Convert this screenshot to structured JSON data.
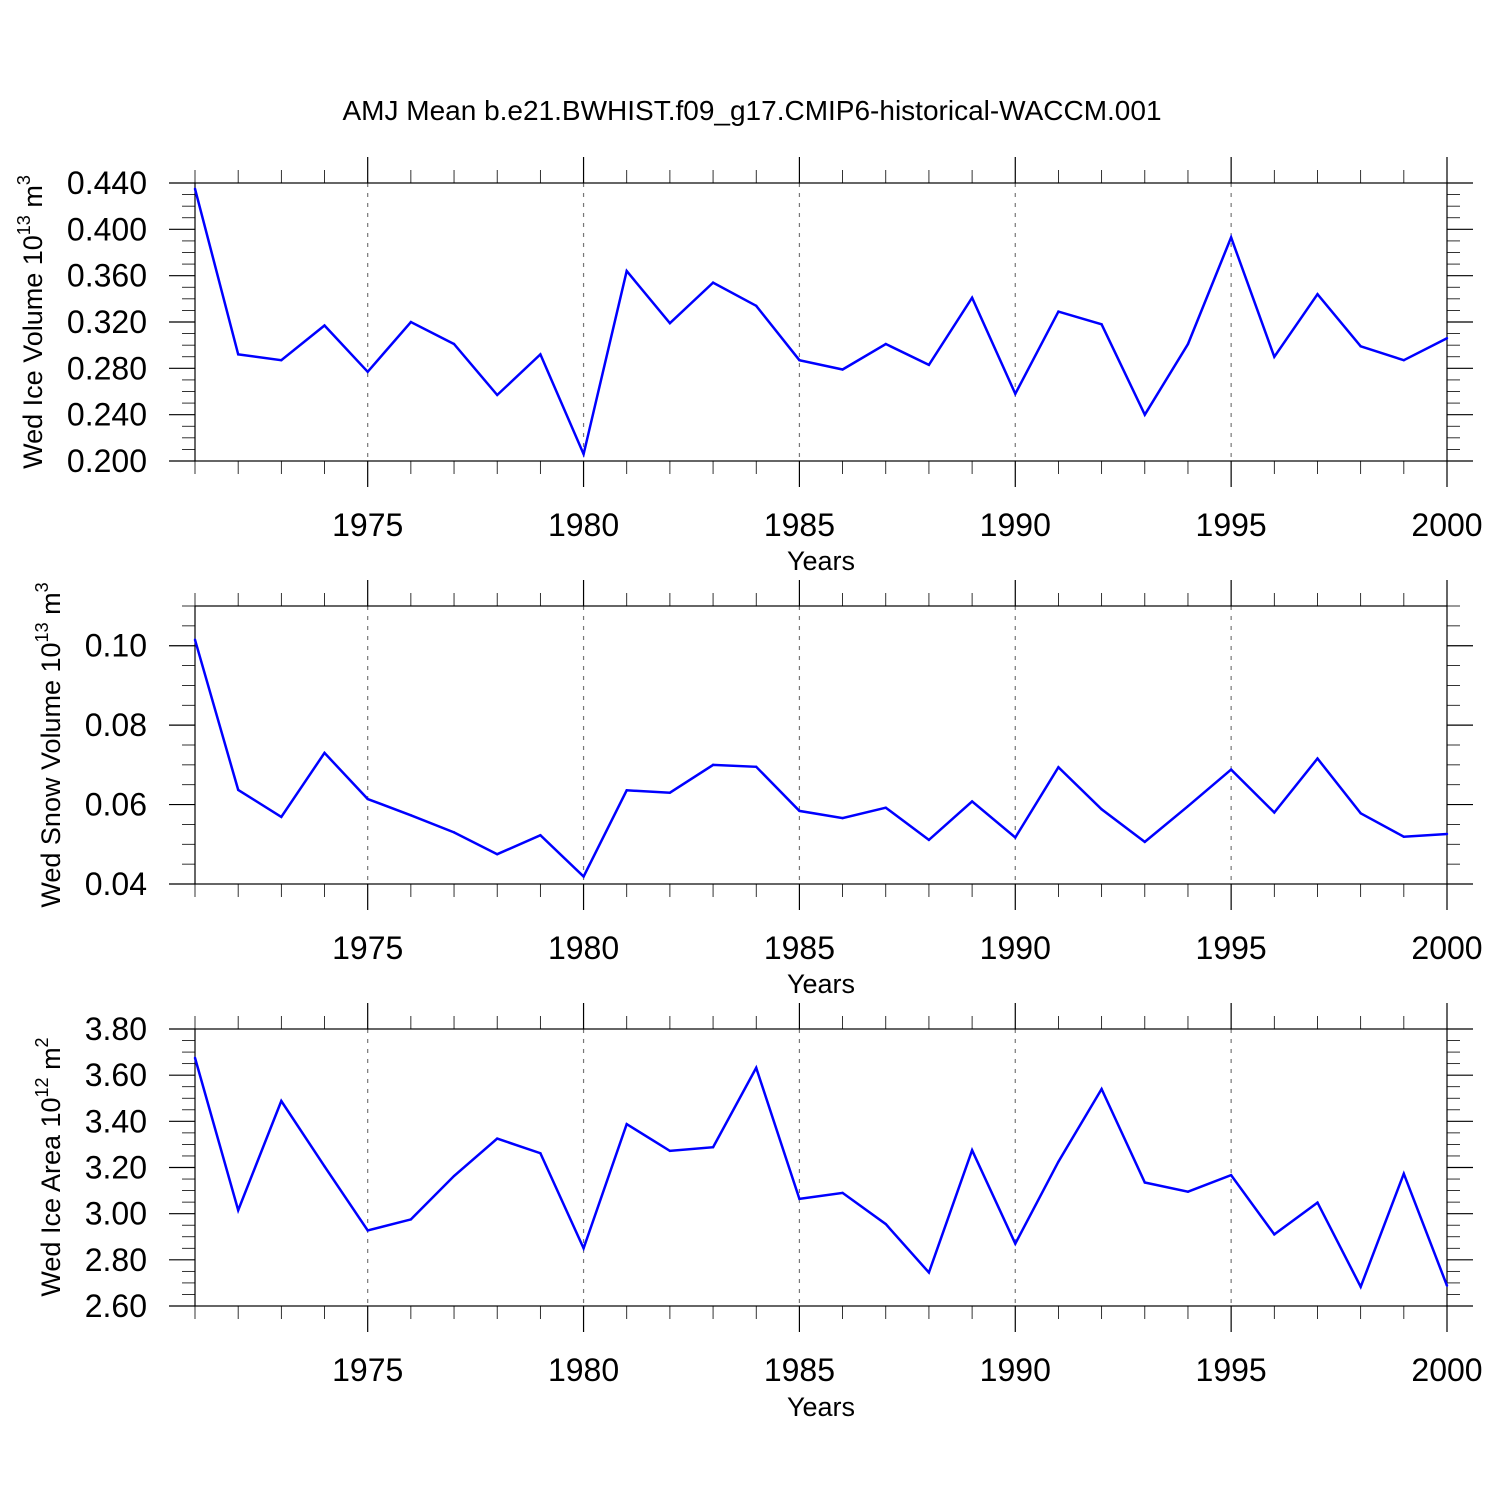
{
  "title": "AMJ Mean b.e21.BWHIST.f09_g17.CMIP6-historical-WACCM.001",
  "line_color": "#0000ff",
  "chart_data": [
    {
      "type": "line",
      "ylabel_main": "Wed Ice Volume 10",
      "ylabel_exp": "13",
      "ylabel_unit": " m",
      "ylabel_unit_exp": "3",
      "xlabel": "Years",
      "xlim": [
        1971,
        2000
      ],
      "xticks": [
        1975,
        1980,
        1985,
        1990,
        1995,
        2000
      ],
      "ylim": [
        0.2,
        0.44
      ],
      "yticks": [
        "0.200",
        "0.240",
        "0.280",
        "0.320",
        "0.360",
        "0.400",
        "0.440"
      ],
      "x": [
        1971,
        1972,
        1973,
        1974,
        1975,
        1976,
        1977,
        1978,
        1979,
        1980,
        1981,
        1982,
        1983,
        1984,
        1985,
        1986,
        1987,
        1988,
        1989,
        1990,
        1991,
        1992,
        1993,
        1994,
        1995,
        1996,
        1997,
        1998,
        1999,
        2000
      ],
      "values": [
        0.435,
        0.292,
        0.287,
        0.317,
        0.277,
        0.32,
        0.301,
        0.257,
        0.292,
        0.206,
        0.364,
        0.319,
        0.354,
        0.334,
        0.287,
        0.279,
        0.301,
        0.283,
        0.341,
        0.258,
        0.329,
        0.318,
        0.24,
        0.301,
        0.393,
        0.29,
        0.344,
        0.299,
        0.287,
        0.306
      ]
    },
    {
      "type": "line",
      "ylabel_main": "Wed Snow Volume 10",
      "ylabel_exp": "13",
      "ylabel_unit": " m",
      "ylabel_unit_exp": "3",
      "xlabel": "Years",
      "xlim": [
        1971,
        2000
      ],
      "xticks": [
        1975,
        1980,
        1985,
        1990,
        1995,
        2000
      ],
      "ylim": [
        0.04,
        0.11
      ],
      "yticks": [
        "0.04",
        "0.06",
        "0.08",
        "0.10"
      ],
      "x": [
        1971,
        1972,
        1973,
        1974,
        1975,
        1976,
        1977,
        1978,
        1979,
        1980,
        1981,
        1982,
        1983,
        1984,
        1985,
        1986,
        1987,
        1988,
        1989,
        1990,
        1991,
        1992,
        1993,
        1994,
        1995,
        1996,
        1997,
        1998,
        1999,
        2000
      ],
      "values": [
        0.1015,
        0.0637,
        0.0569,
        0.073,
        0.0614,
        0.0573,
        0.053,
        0.0475,
        0.0523,
        0.0419,
        0.0636,
        0.063,
        0.07,
        0.0695,
        0.0584,
        0.0566,
        0.0592,
        0.0511,
        0.0608,
        0.0517,
        0.0694,
        0.0588,
        0.0506,
        0.0596,
        0.0688,
        0.058,
        0.0716,
        0.0578,
        0.0519,
        0.0526
      ]
    },
    {
      "type": "line",
      "ylabel_main": "Wed Ice Area 10",
      "ylabel_exp": "12",
      "ylabel_unit": " m",
      "ylabel_unit_exp": "2",
      "xlabel": "Years",
      "xlim": [
        1971,
        2000
      ],
      "xticks": [
        1975,
        1980,
        1985,
        1990,
        1995,
        2000
      ],
      "ylim": [
        2.6,
        3.8
      ],
      "yticks": [
        "2.60",
        "2.80",
        "3.00",
        "3.20",
        "3.40",
        "3.60",
        "3.80"
      ],
      "x": [
        1971,
        1972,
        1973,
        1974,
        1975,
        1976,
        1977,
        1978,
        1979,
        1980,
        1981,
        1982,
        1983,
        1984,
        1985,
        1986,
        1987,
        1988,
        1989,
        1990,
        1991,
        1992,
        1993,
        1994,
        1995,
        1996,
        1997,
        1998,
        1999,
        2000
      ],
      "values": [
        3.675,
        3.015,
        3.488,
        3.205,
        2.927,
        2.975,
        3.163,
        3.325,
        3.262,
        2.85,
        3.388,
        3.272,
        3.288,
        3.632,
        3.064,
        3.09,
        2.955,
        2.745,
        3.275,
        2.87,
        3.225,
        3.54,
        3.135,
        3.095,
        3.167,
        2.91,
        3.048,
        2.683,
        3.173,
        2.688
      ]
    }
  ]
}
